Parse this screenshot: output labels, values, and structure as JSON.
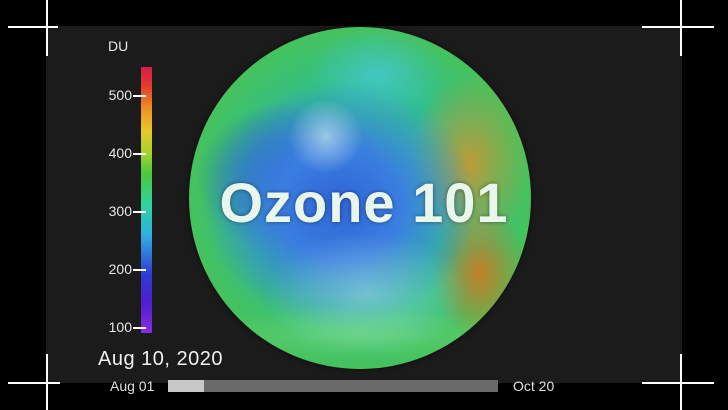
{
  "title": "Ozone 101",
  "colorbar": {
    "unit": "DU",
    "ticks": [
      "500",
      "400",
      "300",
      "200",
      "100"
    ]
  },
  "date": "Aug 10, 2020",
  "timeline": {
    "start_label": "Aug 01",
    "end_label": "Oct 20",
    "progress": 0.11
  },
  "colors": {
    "frame_background": "#1b1b1b",
    "crop_marks": "#ffffff"
  }
}
